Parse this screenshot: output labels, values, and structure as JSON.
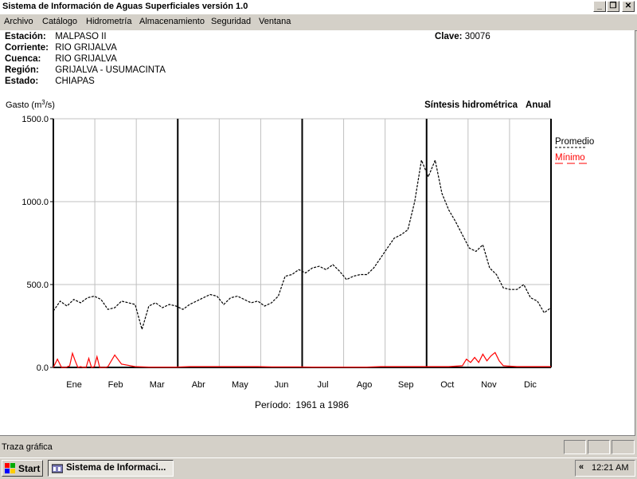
{
  "window": {
    "title": "Sistema de Información de Aguas Superficiales  versión 1.0",
    "minimize_icon": "minimize-icon",
    "restore_icon": "restore-icon",
    "close_icon": "close-icon"
  },
  "menu": {
    "items": [
      "Archivo",
      "Catálogo",
      "Hidrometría",
      "Almacenamiento",
      "Seguridad",
      "Ventana"
    ]
  },
  "station": {
    "estacion_label": "Estación:",
    "estacion": "MALPASO II",
    "corriente_label": "Corriente:",
    "corriente": "RIO GRIJALVA",
    "cuenca_label": "Cuenca:",
    "cuenca": "RIO GRIJALVA",
    "region_label": "Región:",
    "region": "GRIJALVA - USUMACINTA",
    "estado_label": "Estado:",
    "estado": "CHIAPAS",
    "clave_label": "Clave:",
    "clave": "30076"
  },
  "chart_data": {
    "type": "line",
    "ylabel": "Gasto (m³/s)",
    "title": "Síntesis hidrométrica",
    "mode": "Anual",
    "period_label": "Período:",
    "period": "1961 a 1986",
    "ylim": [
      0,
      1500
    ],
    "yticks": [
      "1500.0",
      "1000.0",
      "500.0",
      "0.0"
    ],
    "months": [
      "Ene",
      "Feb",
      "Mar",
      "Abr",
      "May",
      "Jun",
      "Jul",
      "Ago",
      "Sep",
      "Oct",
      "Nov",
      "Dic"
    ],
    "legend_placement": "top-right",
    "series": [
      {
        "name": "Promedio",
        "color": "#000000",
        "style": "dashed",
        "x": [
          0,
          5,
          10,
          15,
          20,
          25,
          30,
          35,
          40,
          45,
          50,
          55,
          60,
          65,
          70,
          75,
          80,
          85,
          90,
          95,
          100,
          105,
          110,
          115,
          120,
          125,
          130,
          135,
          140,
          145,
          150,
          155,
          160,
          165,
          170,
          175,
          180,
          185,
          190,
          195,
          200,
          205,
          210,
          215,
          220,
          225,
          230,
          235,
          240,
          245,
          250,
          255,
          260,
          265,
          270,
          275,
          280,
          285,
          290,
          295,
          300,
          305,
          310,
          315,
          320,
          325,
          330,
          335,
          340,
          345,
          350,
          355,
          360,
          365
        ],
        "y": [
          340,
          400,
          370,
          410,
          390,
          420,
          430,
          410,
          350,
          360,
          400,
          390,
          380,
          230,
          370,
          390,
          360,
          380,
          370,
          350,
          380,
          400,
          420,
          440,
          430,
          380,
          420,
          430,
          410,
          390,
          400,
          370,
          390,
          430,
          550,
          560,
          590,
          570,
          600,
          610,
          590,
          620,
          580,
          530,
          550,
          560,
          560,
          600,
          660,
          720,
          780,
          800,
          830,
          1000,
          1250,
          1150,
          1250,
          1050,
          950,
          880,
          800,
          720,
          700,
          740,
          600,
          560,
          480,
          470,
          470,
          500,
          420,
          400,
          330,
          360
        ]
      },
      {
        "name": "Mínimo",
        "color": "#ff0000",
        "style": "solid",
        "x": [
          0,
          3,
          6,
          9,
          12,
          14,
          16,
          18,
          20,
          22,
          24,
          26,
          28,
          30,
          32,
          34,
          36,
          38,
          40,
          45,
          50,
          60,
          70,
          80,
          90,
          100,
          110,
          120,
          130,
          140,
          150,
          160,
          170,
          180,
          190,
          200,
          210,
          220,
          230,
          240,
          250,
          260,
          270,
          280,
          290,
          300,
          303,
          306,
          309,
          312,
          315,
          318,
          321,
          324,
          327,
          330,
          340,
          350,
          360,
          365
        ],
        "y": [
          0,
          50,
          0,
          0,
          10,
          85,
          40,
          0,
          5,
          0,
          0,
          55,
          0,
          5,
          65,
          0,
          0,
          0,
          5,
          75,
          20,
          5,
          2,
          2,
          2,
          5,
          5,
          5,
          5,
          5,
          5,
          3,
          3,
          3,
          2,
          2,
          2,
          2,
          2,
          5,
          5,
          5,
          5,
          5,
          5,
          10,
          50,
          30,
          60,
          30,
          80,
          40,
          70,
          90,
          40,
          10,
          5,
          5,
          5,
          5
        ]
      }
    ]
  },
  "statusbar": {
    "text": "Traza gráfica"
  },
  "taskbar": {
    "start_label": "Start",
    "task_label": "Sistema de Informaci...",
    "tray_arrow": "«",
    "clock": "12:21 AM"
  }
}
